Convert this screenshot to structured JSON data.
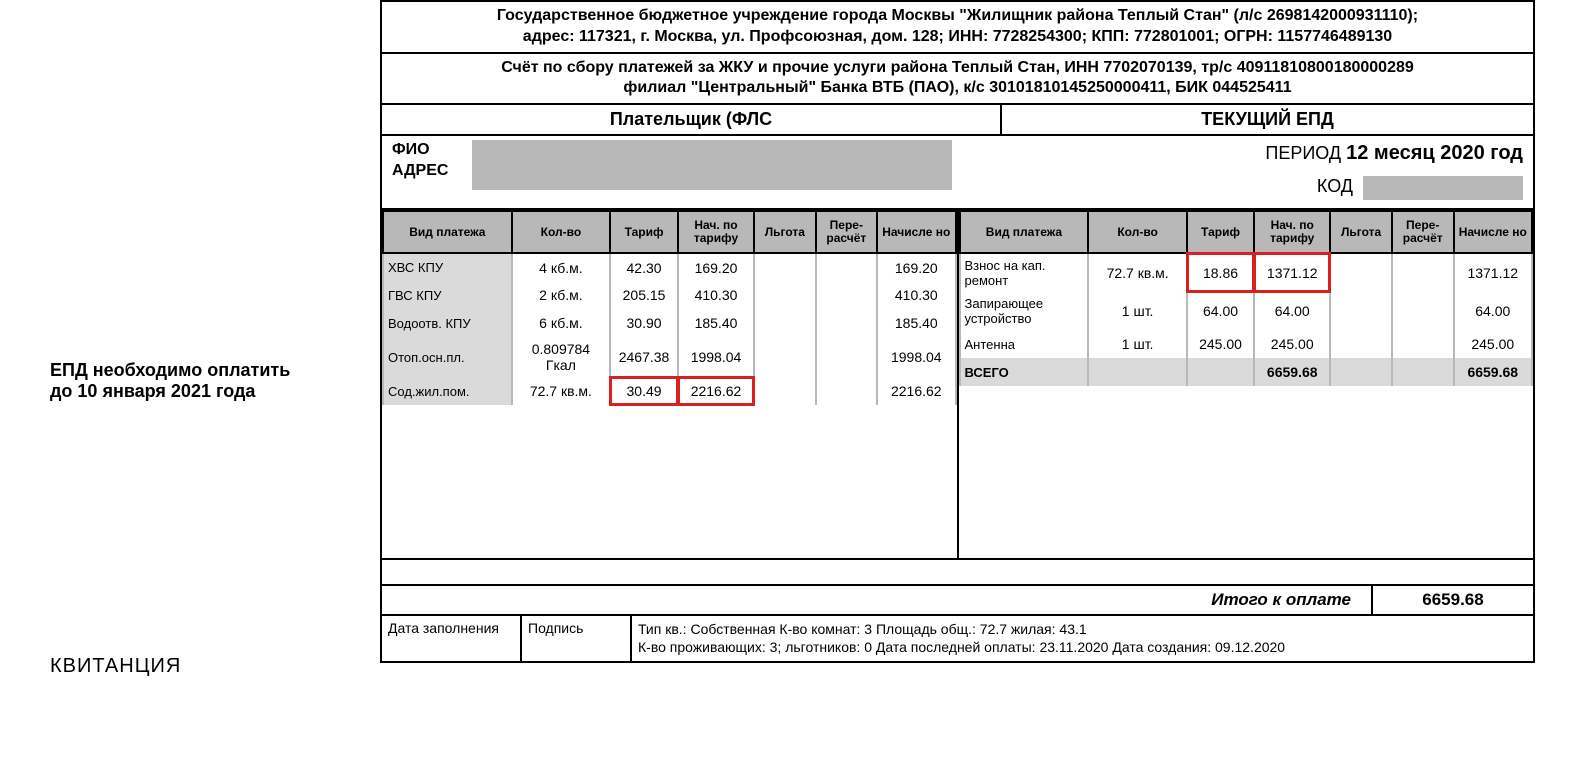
{
  "sidebar": {
    "pay_notice_line1": "ЕПД необходимо оплатить",
    "pay_notice_line2": "до 10 января 2021 года",
    "receipt_label": "КВИТАНЦИЯ"
  },
  "header": {
    "org_line1": "Государственное бюджетное учреждение города Москвы \"Жилищник района Теплый Стан\" (л/с 2698142000931110);",
    "org_line2": "адрес: 117321, г. Москва, ул. Профсоюзная, дом. 128; ИНН: 7728254300; КПП: 772801001; ОГРН: 1157746489130",
    "acct_line1": "Счёт по сбору платежей за ЖКУ и прочие услуги района Теплый Стан, ИНН 7702070139, тр/с 40911810800180000289",
    "acct_line2": "филиал \"Центральный\" Банка ВТБ (ПАО), к/с 30101810145250000411, БИК 044525411"
  },
  "payer": {
    "left_label": "Плательщик       (ФЛС",
    "right_label": "ТЕКУЩИЙ ЕПД"
  },
  "info": {
    "fio_label": "ФИО",
    "addr_label": "АДРЕС",
    "period_prefix": "ПЕРИОД",
    "period_value": "12 месяц 2020 год",
    "kod_label": "КОД"
  },
  "columns": {
    "c1": "Вид платежа",
    "c2": "Кол-во",
    "c3": "Тариф",
    "c4": "Нач. по тарифу",
    "c5": "Льгота",
    "c6": "Пере-расчёт",
    "c7": "Начисле но"
  },
  "left_rows": [
    {
      "name": "ХВС КПУ",
      "qty": "4 кб.м.",
      "tarif": "42.30",
      "nach": "169.20",
      "lgota": "",
      "pere": "",
      "tot": "169.20",
      "hl": false
    },
    {
      "name": "ГВС КПУ",
      "qty": "2 кб.м.",
      "tarif": "205.15",
      "nach": "410.30",
      "lgota": "",
      "pere": "",
      "tot": "410.30",
      "hl": false
    },
    {
      "name": "Водоотв. КПУ",
      "qty": "6 кб.м.",
      "tarif": "30.90",
      "nach": "185.40",
      "lgota": "",
      "pere": "",
      "tot": "185.40",
      "hl": false
    },
    {
      "name": "Отоп.осн.пл.",
      "qty": "0.809784 Гкал",
      "tarif": "2467.38",
      "nach": "1998.04",
      "lgota": "",
      "pere": "",
      "tot": "1998.04",
      "hl": false
    },
    {
      "name": "Сод.жил.пом.",
      "qty": "72.7 кв.м.",
      "tarif": "30.49",
      "nach": "2216.62",
      "lgota": "",
      "pere": "",
      "tot": "2216.62",
      "hl": true
    }
  ],
  "right_rows": [
    {
      "name": "Взнос на кап. ремонт",
      "qty": "72.7 кв.м.",
      "tarif": "18.86",
      "nach": "1371.12",
      "lgota": "",
      "pere": "",
      "tot": "1371.12",
      "hl": true
    },
    {
      "name": "Запирающее устройство",
      "qty": "1 шт.",
      "tarif": "64.00",
      "nach": "64.00",
      "lgota": "",
      "pere": "",
      "tot": "64.00",
      "hl": false
    },
    {
      "name": "Антенна",
      "qty": "1 шт.",
      "tarif": "245.00",
      "nach": "245.00",
      "lgota": "",
      "pere": "",
      "tot": "245.00",
      "hl": false
    }
  ],
  "totals": {
    "vsego_label": "ВСЕГО",
    "vsego_nach": "6659.68",
    "vsego_tot": "6659.68",
    "itogo_label": "Итого к оплате",
    "itogo_value": "6659.68"
  },
  "footer": {
    "date_label": "Дата заполнения",
    "sign_label": "Подпись",
    "info_line1": "Тип кв.: Собственная К-во комнат: 3 Площадь общ.: 72.7 жилая: 43.1",
    "info_line2": "К-во проживающих: 3; льготников: 0 Дата последней оплаты: 23.11.2020 Дата создания: 09.12.2020"
  },
  "styling": {
    "highlight_color": "#d92020",
    "header_bg": "#b8b8b8",
    "shaded_bg": "#dadada",
    "border_color": "#000000",
    "font_family": "Arial"
  }
}
